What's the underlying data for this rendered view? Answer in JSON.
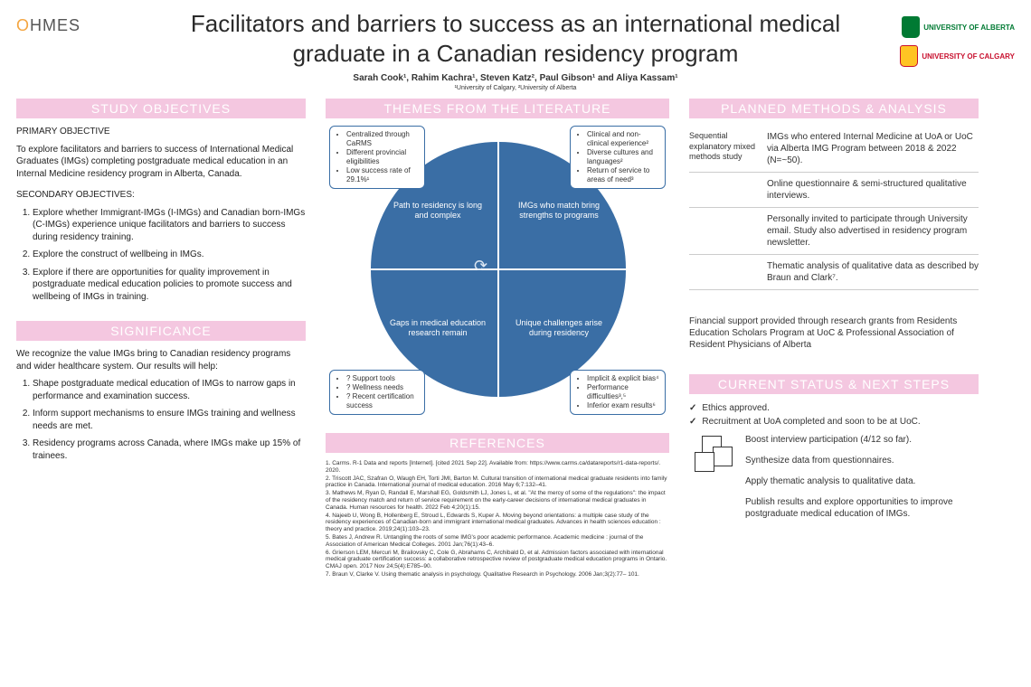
{
  "logoLeft": "HMES",
  "uniA": "UNIVERSITY OF ALBERTA",
  "uniC": "UNIVERSITY OF CALGARY",
  "title": "Facilitators and barriers to success as an international medical graduate in a Canadian residency program",
  "authors": "Sarah Cook¹, Rahim Kachra¹, Steven Katz², Paul Gibson¹ and Aliya Kassam¹",
  "affil": "¹University of Calgary, ²University of Alberta",
  "headers": {
    "obj": "STUDY OBJECTIVES",
    "themes": "THEMES FROM THE LITERATURE",
    "methods": "PLANNED METHODS & ANALYSIS",
    "sig": "SIGNIFICANCE",
    "refs": "REFERENCES",
    "status": "CURRENT STATUS & NEXT STEPS"
  },
  "objectives": {
    "primaryLabel": "PRIMARY OBJECTIVE",
    "primary": "To explore facilitators and barriers to success of International Medical Graduates (IMGs) completing postgraduate medical education in an Internal Medicine residency program in Alberta, Canada.",
    "secondaryLabel": "SECONDARY OBJECTIVES:",
    "s1": "Explore whether Immigrant-IMGs (I-IMGs) and Canadian born-IMGs (C-IMGs) experience unique facilitators and barriers to success during residency training.",
    "s2": "Explore the construct of wellbeing in IMGs.",
    "s3": "Explore if there are opportunities for quality improvement in postgraduate medical education policies to promote success and wellbeing of IMGs in training."
  },
  "significance": {
    "intro": "We recognize the value IMGs bring to Canadian residency programs and wider healthcare system. Our results will help:",
    "s1": "Shape postgraduate medical education of IMGs to narrow gaps in performance and examination success.",
    "s2": "Inform support mechanisms to ensure IMGs training and wellness needs are met.",
    "s3": "Residency programs across Canada, where IMGs make up 15% of trainees."
  },
  "diagram": {
    "q_tl": "Path to residency is long and complex",
    "q_tr": "IMGs who match bring strengths to programs",
    "q_bl": "Gaps in medical education research remain",
    "q_br": "Unique challenges arise during residency",
    "a_tl": [
      "Centralized through CaRMS",
      "Different provincial eligibilities",
      "Low success rate of 29.1%¹"
    ],
    "a_tr": [
      "Clinical and non-clinical experience²",
      "Diverse cultures and languages²",
      "Return of service to areas of need³"
    ],
    "a_bl": [
      "? Support tools",
      "? Wellness needs",
      "? Recent certification success"
    ],
    "a_br": [
      "Implicit & explicit bias⁴",
      "Performance difficulties³,⁵",
      "Inferior exam results⁶"
    ]
  },
  "methods": {
    "r1l": "Sequential explanatory mixed methods study",
    "r1r": "IMGs who entered Internal Medicine at UoA or UoC via Alberta IMG Program between 2018 & 2022 (N=~50).",
    "r2r": "Online questionnaire & semi-structured qualitative interviews.",
    "r3r": "Personally invited to participate through University email. Study also advertised in residency program newsletter.",
    "r4r": "Thematic analysis of qualitative data as described by Braun and Clark⁷."
  },
  "funding": "Financial support provided through research grants from Residents Education Scholars Program at UoC & Professional Association of Resident Physicians of Alberta",
  "status": {
    "c1": "Ethics approved.",
    "c2": "Recruitment at UoA completed and soon to be at UoC.",
    "n1": "Boost interview participation (4/12 so far).",
    "n2": "Synthesize data from questionnaires.",
    "n3": "Apply thematic analysis to qualitative data.",
    "n4": "Publish results and explore opportunities to improve postgraduate medical education of IMGs."
  },
  "refs": [
    "1. Carms. R-1 Data and reports [Internet]. [cited 2021 Sep 22]. Available from: https://www.carms.ca/datareports/r1-data-reports/. 2020.",
    "2. Triscott JAC, Szafran O, Waugh EH, Torti JMI, Barton M. Cultural transition of international medical graduate residents into family practice in Canada. International journal of medical education. 2016 May 6;7:132–41.",
    "3. Mathews M, Ryan D, Randall E, Marshall EG, Goldsmith LJ, Jones L, et al. \"At the mercy of some of the regulations\": the impact of the residency match and return of service requirement on the early-career decisions of international medical graduates in Canada. Human resources for health. 2022 Feb 4;20(1):15.",
    "4. Najeeb U, Wong B, Hollenberg E, Stroud L, Edwards S, Kuper A. Moving beyond orientations: a multiple case study of the residency experiences of Canadian-born and immigrant international medical graduates. Advances in health sciences education : theory and practice. 2019;24(1):103–23.",
    "5. Bates J, Andrew R. Untangling the roots of some IMG's poor academic performance. Academic medicine : journal of the Association of American Medical Colleges. 2001 Jan;76(1):43–6.",
    "6. Grierson LEM, Mercuri M, Brailovsky C, Cole G, Abrahams C, Archibald D, et al. Admission factors associated with international medical graduate certification success: a collaborative retrospective review of postgraduate medical education programs in Ontario. CMAJ open. 2017 Nov 24;5(4):E785–90.",
    "7. Braun V, Clarke V. Using thematic analysis in psychology. Qualitative Research in Psychology. 2006 Jan;3(2):77– 101."
  ]
}
